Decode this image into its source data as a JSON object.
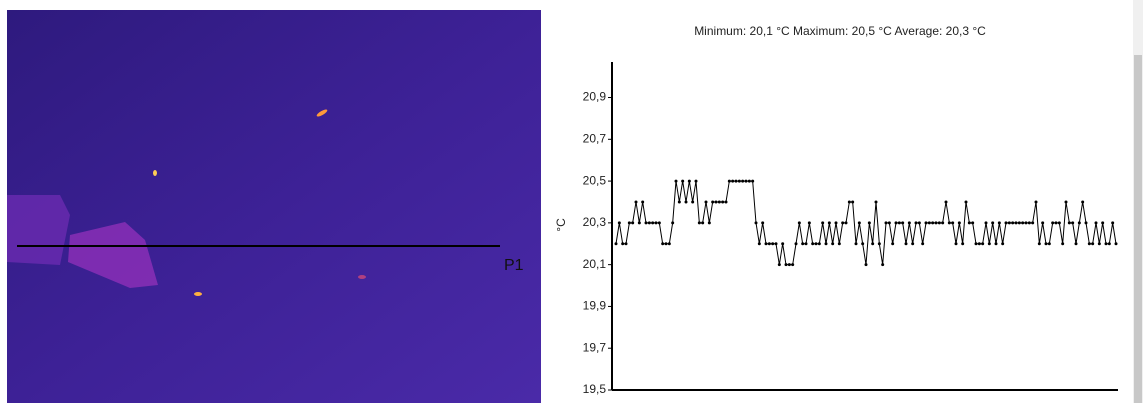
{
  "thermal_image": {
    "line_label": "P1"
  },
  "chart_data": {
    "type": "line",
    "title": "Minimum: 20,1 °C Maximum: 20,5 °C Average: 20,3 °C",
    "y_label": "°C",
    "ylim": [
      19.5,
      21.07
    ],
    "yticks": [
      {
        "value": 19.5,
        "label": "19,5"
      },
      {
        "value": 19.7,
        "label": "19,7"
      },
      {
        "value": 19.9,
        "label": "19,9"
      },
      {
        "value": 20.1,
        "label": "20,1"
      },
      {
        "value": 20.3,
        "label": "20,3"
      },
      {
        "value": 20.5,
        "label": "20,5"
      },
      {
        "value": 20.7,
        "label": "20,7"
      },
      {
        "value": 20.9,
        "label": "20,9"
      }
    ],
    "grid": false,
    "series": [
      {
        "color": "#000000",
        "values": [
          20.2,
          20.3,
          20.2,
          20.2,
          20.3,
          20.3,
          20.4,
          20.3,
          20.4,
          20.3,
          20.3,
          20.3,
          20.3,
          20.3,
          20.2,
          20.2,
          20.2,
          20.3,
          20.5,
          20.4,
          20.5,
          20.4,
          20.5,
          20.4,
          20.5,
          20.3,
          20.3,
          20.4,
          20.3,
          20.4,
          20.4,
          20.4,
          20.4,
          20.4,
          20.5,
          20.5,
          20.5,
          20.5,
          20.5,
          20.5,
          20.5,
          20.5,
          20.3,
          20.2,
          20.3,
          20.2,
          20.2,
          20.2,
          20.2,
          20.1,
          20.2,
          20.1,
          20.1,
          20.1,
          20.2,
          20.3,
          20.2,
          20.2,
          20.3,
          20.2,
          20.2,
          20.2,
          20.3,
          20.2,
          20.3,
          20.2,
          20.3,
          20.2,
          20.3,
          20.3,
          20.4,
          20.4,
          20.2,
          20.3,
          20.2,
          20.1,
          20.3,
          20.2,
          20.4,
          20.2,
          20.1,
          20.3,
          20.3,
          20.2,
          20.3,
          20.3,
          20.3,
          20.2,
          20.3,
          20.2,
          20.3,
          20.3,
          20.2,
          20.3,
          20.3,
          20.3,
          20.3,
          20.3,
          20.3,
          20.4,
          20.3,
          20.3,
          20.2,
          20.3,
          20.2,
          20.4,
          20.3,
          20.3,
          20.2,
          20.2,
          20.2,
          20.3,
          20.2,
          20.3,
          20.2,
          20.3,
          20.2,
          20.3,
          20.3,
          20.3,
          20.3,
          20.3,
          20.3,
          20.3,
          20.3,
          20.3,
          20.4,
          20.2,
          20.3,
          20.2,
          20.2,
          20.3,
          20.3,
          20.3,
          20.2,
          20.4,
          20.3,
          20.3,
          20.2,
          20.3,
          20.4,
          20.3,
          20.2,
          20.2,
          20.3,
          20.2,
          20.3,
          20.2,
          20.2,
          20.3,
          20.2
        ]
      }
    ]
  }
}
